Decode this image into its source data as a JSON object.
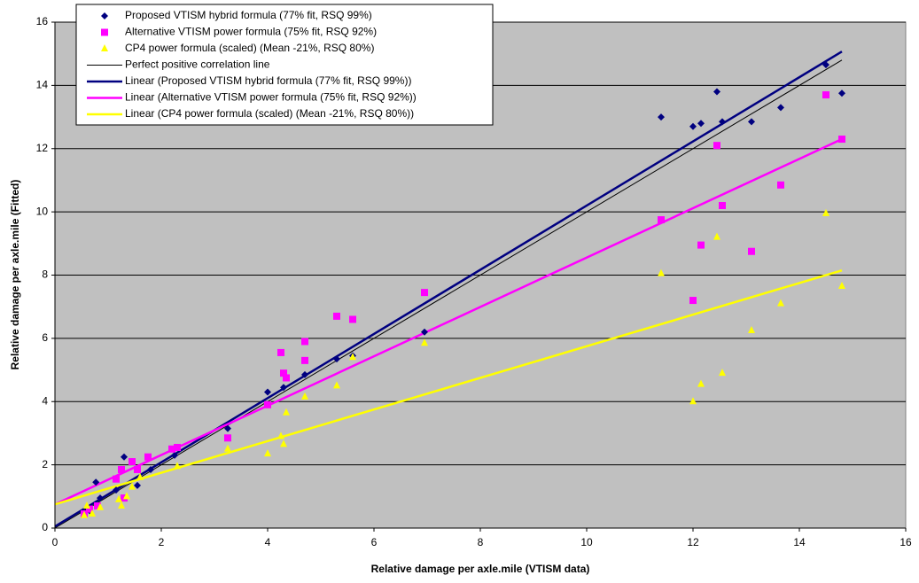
{
  "chart_data": {
    "type": "scatter",
    "xlabel": "Relative damage per axle.mile (VTISM data)",
    "ylabel": "Relative damage per axle.mile (Fitted)",
    "xlim": [
      0,
      16
    ],
    "ylim": [
      0,
      16
    ],
    "xticks": [
      0,
      2,
      4,
      6,
      8,
      10,
      12,
      14,
      16
    ],
    "yticks": [
      0,
      2,
      4,
      6,
      8,
      10,
      12,
      14,
      16
    ],
    "grid": true,
    "background": "#c0c0c0",
    "series": [
      {
        "name": "Proposed VTISM hybrid formula (77% fit, RSQ 99%)",
        "mode": "markers",
        "marker": "diamond",
        "color": "#000080",
        "x": [
          0.55,
          0.65,
          0.77,
          0.85,
          1.15,
          1.3,
          1.45,
          1.55,
          1.8,
          2.25,
          3.25,
          4.0,
          4.3,
          4.7,
          5.3,
          5.6,
          6.95,
          11.4,
          12.0,
          12.15,
          12.45,
          12.55,
          13.1,
          13.65,
          14.5,
          14.8
        ],
        "values": [
          0.45,
          0.55,
          1.45,
          0.95,
          1.2,
          2.25,
          2.1,
          1.35,
          1.85,
          2.3,
          3.15,
          4.3,
          4.45,
          4.85,
          5.35,
          5.45,
          6.2,
          13.0,
          12.7,
          12.8,
          13.8,
          12.85,
          12.85,
          13.3,
          14.65,
          13.75
        ]
      },
      {
        "name": "Alternative VTISM power formula (75% fit, RSQ 92%)",
        "mode": "markers",
        "marker": "square",
        "color": "#ff00ff",
        "x": [
          0.55,
          0.65,
          0.8,
          1.15,
          1.25,
          1.3,
          1.45,
          1.55,
          1.75,
          2.2,
          2.3,
          3.25,
          4.0,
          4.25,
          4.3,
          4.35,
          4.7,
          4.7,
          5.3,
          5.6,
          6.95,
          11.4,
          12.0,
          12.15,
          12.45,
          12.55,
          13.1,
          13.65,
          14.5,
          14.8
        ],
        "values": [
          0.45,
          0.6,
          0.7,
          1.55,
          1.85,
          0.95,
          2.1,
          1.85,
          2.25,
          2.5,
          2.55,
          2.85,
          3.9,
          5.55,
          4.9,
          4.75,
          5.3,
          5.9,
          6.7,
          6.6,
          7.45,
          9.75,
          7.2,
          8.95,
          12.1,
          10.2,
          8.75,
          10.85,
          13.7,
          12.3
        ]
      },
      {
        "name": "CP4 power formula (scaled) (Mean -21%, RSQ 80%)",
        "mode": "markers",
        "marker": "triangle",
        "color": "#ffff00",
        "x": [
          0.55,
          0.6,
          0.7,
          0.85,
          1.2,
          1.25,
          1.35,
          1.45,
          1.6,
          2.3,
          3.25,
          4.0,
          4.25,
          4.3,
          4.35,
          4.7,
          5.3,
          5.6,
          6.95,
          11.4,
          12.0,
          12.15,
          12.45,
          12.55,
          13.1,
          13.65,
          14.5,
          14.8
        ],
        "values": [
          0.4,
          0.7,
          0.45,
          0.65,
          0.9,
          0.7,
          1.0,
          1.3,
          1.6,
          1.95,
          2.5,
          2.35,
          2.9,
          2.65,
          3.65,
          4.15,
          4.5,
          5.4,
          5.85,
          8.05,
          4.0,
          4.55,
          9.2,
          4.9,
          6.25,
          7.1,
          9.95,
          7.65
        ]
      },
      {
        "name": "Perfect positive correlation line",
        "mode": "line",
        "color": "#000000",
        "width": 1,
        "x": [
          0,
          14.8
        ],
        "values": [
          0,
          14.8
        ]
      },
      {
        "name": "Linear (Proposed VTISM hybrid formula (77% fit, RSQ 99%))",
        "mode": "line",
        "color": "#000080",
        "width": 2.5,
        "x": [
          0,
          14.8
        ],
        "values": [
          0.05,
          15.07
        ]
      },
      {
        "name": "Linear (Alternative VTISM power formula (75% fit, RSQ 92%))",
        "mode": "line",
        "color": "#ff00ff",
        "width": 2.5,
        "x": [
          0,
          14.8
        ],
        "values": [
          0.75,
          12.3
        ]
      },
      {
        "name": "Linear (CP4 power formula (scaled) (Mean -21%, RSQ 80%))",
        "mode": "line",
        "color": "#ffff00",
        "width": 2.5,
        "x": [
          0,
          14.8
        ],
        "values": [
          0.75,
          8.15
        ]
      }
    ]
  }
}
